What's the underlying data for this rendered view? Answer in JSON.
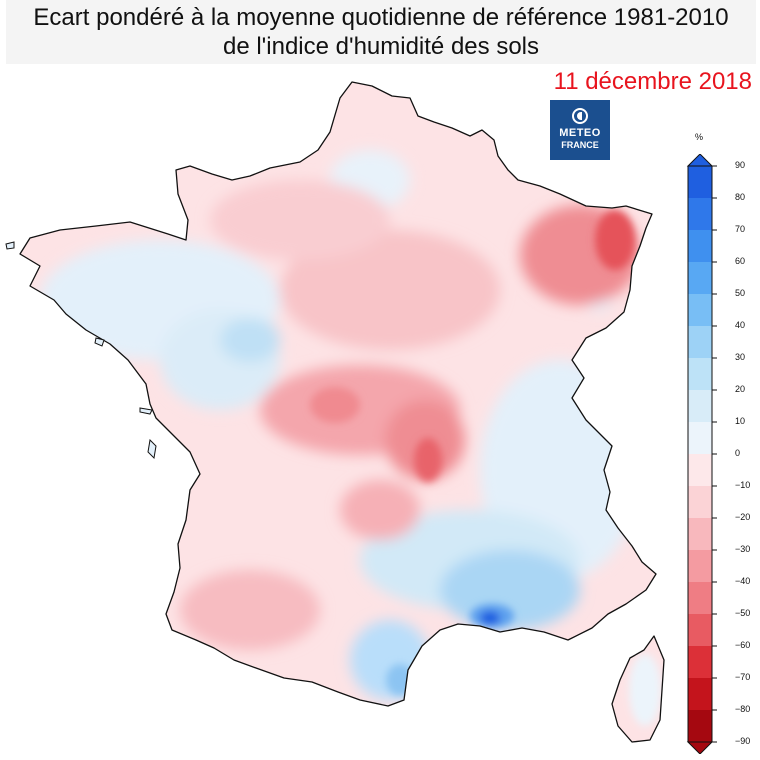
{
  "title_line1": "Ecart pondéré à la moyenne quotidienne de référence 1981-2010",
  "title_line2": "de l'indice d'humidité des sols",
  "date": "11 décembre 2018",
  "logo": {
    "line1": "METEO",
    "line2": "FRANCE"
  },
  "legend": {
    "unit": "%",
    "labels": [
      "90",
      "80",
      "70",
      "60",
      "50",
      "40",
      "30",
      "20",
      "10",
      "0",
      "−10",
      "−20",
      "−30",
      "−40",
      "−50",
      "−60",
      "−70",
      "−80",
      "−90"
    ],
    "colors": [
      "#1f5fe0",
      "#2f78ea",
      "#3f90ef",
      "#58a8f3",
      "#78bef5",
      "#9dd2f6",
      "#bde2f7",
      "#d8ecf8",
      "#ecf4fb",
      "#fde8ea",
      "#fbd3d6",
      "#f8b8bd",
      "#f49ba1",
      "#ef7d84",
      "#e85b62",
      "#dc3038",
      "#c4141c",
      "#a50810"
    ],
    "colors_color_role": "legend swatches top (90) to bottom (−90)"
  },
  "map_colors": {
    "base": "#fde3e5",
    "wet_light": "#e3f0fa",
    "wet": "#c2e1f5",
    "wet_strong": "#7fc0f0",
    "wet_core": "#2f6fe0",
    "dry": "#f7bcc1",
    "dry_strong": "#ef8d93",
    "dry_core": "#e5525a"
  }
}
